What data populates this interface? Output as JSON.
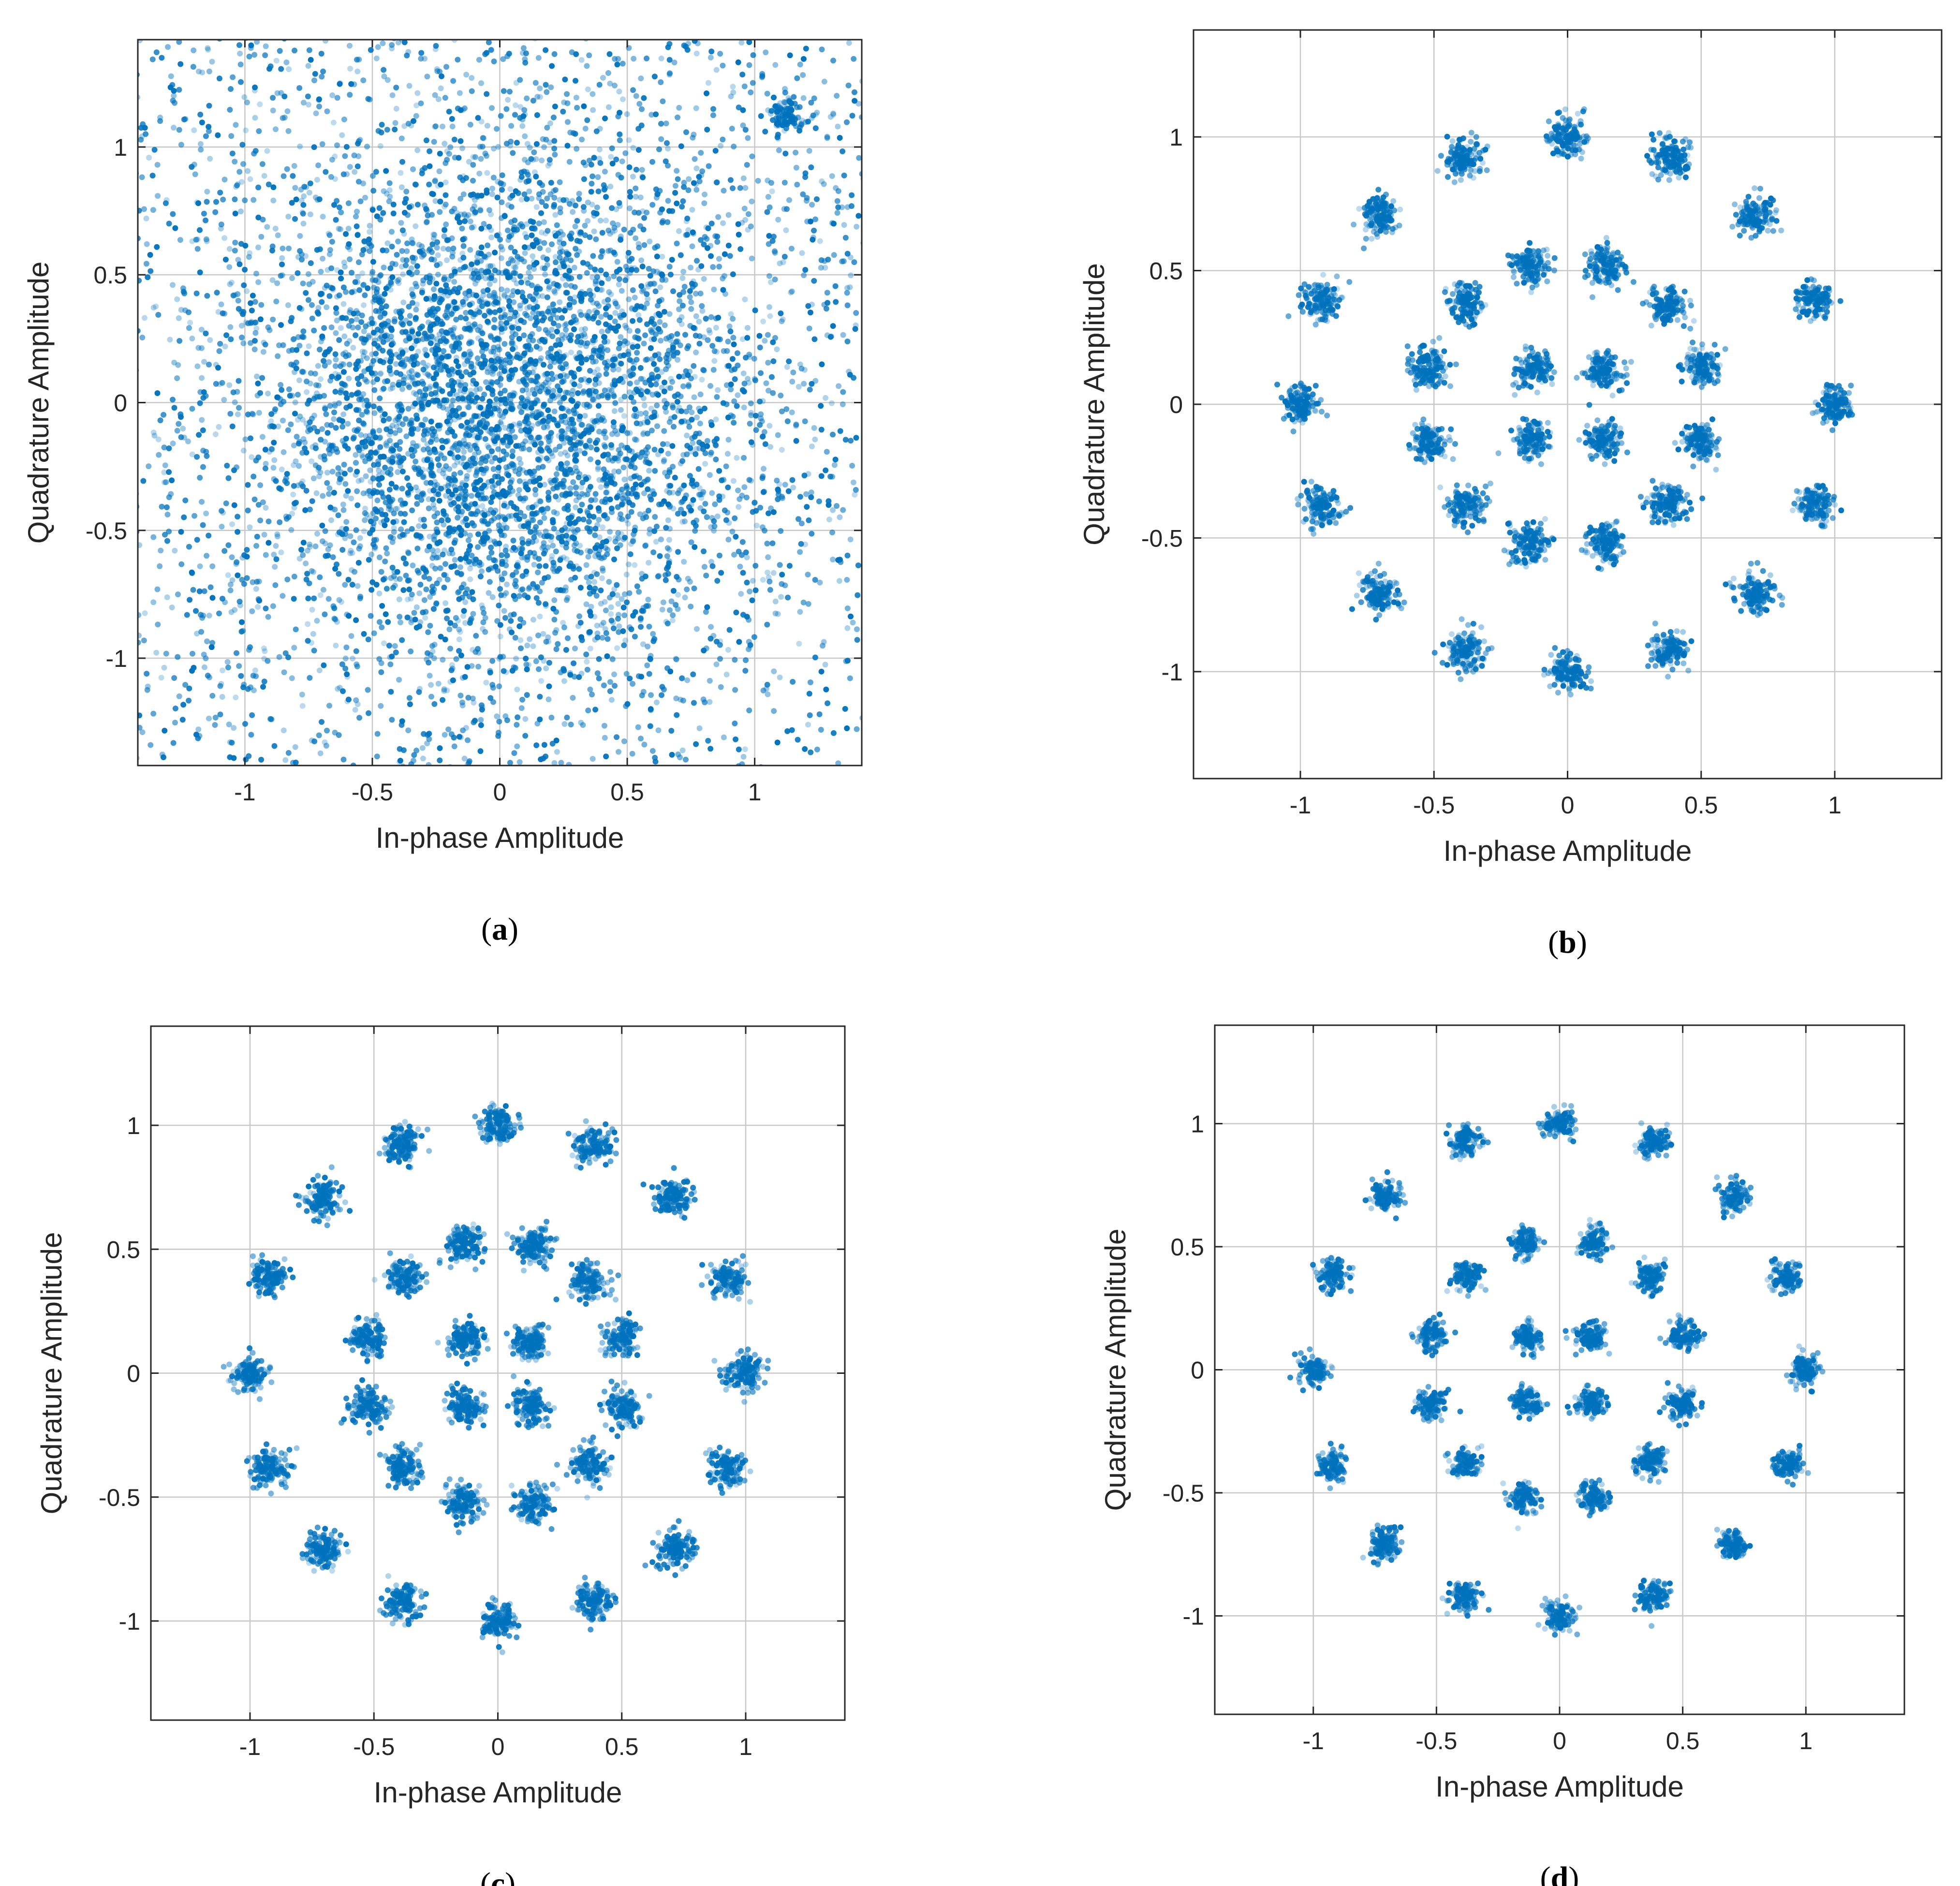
{
  "figure": {
    "point_color": "#0072bd",
    "grid_color": "#c8c8c8",
    "axis_color": "#262626",
    "tick_label_color": "#262626"
  },
  "chart_data": [
    {
      "panel": "a",
      "type": "scatter",
      "title": "",
      "xlabel": "In-phase Amplitude",
      "ylabel": "Quadrature Amplitude",
      "xlim": [
        -1.42,
        1.42
      ],
      "ylim": [
        -1.42,
        1.42
      ],
      "xticks": [
        -1,
        -0.5,
        0,
        0.5,
        1
      ],
      "xtick_labels": [
        "-1",
        "-0.5",
        "0",
        "0.5",
        "1"
      ],
      "yticks": [
        -1,
        -0.5,
        0,
        0.5,
        1
      ],
      "ytick_labels": [
        "-1",
        "-0.5",
        "0",
        "0.5",
        "1"
      ],
      "grid": true,
      "caption": {
        "open": "(",
        "letter": "a",
        "close": ")"
      },
      "distribution": "scattered",
      "point_count": 6500,
      "spread": 0.5,
      "noise_sigma": 0,
      "dense_clusters": [
        {
          "x": 1.12,
          "y": 1.13,
          "sigma": 0.035,
          "n": 90
        }
      ],
      "symbols": []
    },
    {
      "panel": "b",
      "type": "scatter",
      "title": "",
      "xlabel": "In-phase Amplitude",
      "ylabel": "Quadrature Amplitude",
      "xlim": [
        -1.4,
        1.4
      ],
      "ylim": [
        -1.4,
        1.4
      ],
      "xticks": [
        -1,
        -0.5,
        0,
        0.5,
        1
      ],
      "xtick_labels": [
        "-1",
        "-0.5",
        "0",
        "0.5",
        "1"
      ],
      "yticks": [
        -1,
        -0.5,
        0,
        0.5,
        1
      ],
      "ytick_labels": [
        "-1",
        "-0.5",
        "0",
        "0.5",
        "1"
      ],
      "grid": true,
      "caption": {
        "open": "(",
        "letter": "b",
        "close": ")"
      },
      "distribution": "clusters",
      "points_per_symbol": 130,
      "noise_sigma": 0.035,
      "symbols": [
        [
          1.0,
          0.0
        ],
        [
          0.924,
          0.383
        ],
        [
          0.707,
          0.707
        ],
        [
          0.383,
          0.924
        ],
        [
          0.0,
          1.0
        ],
        [
          -0.383,
          0.924
        ],
        [
          -0.707,
          0.707
        ],
        [
          -0.924,
          0.383
        ],
        [
          -1.0,
          0.0
        ],
        [
          -0.924,
          -0.383
        ],
        [
          -0.707,
          -0.707
        ],
        [
          -0.383,
          -0.924
        ],
        [
          0.0,
          -1.0
        ],
        [
          0.383,
          -0.924
        ],
        [
          0.707,
          -0.707
        ],
        [
          0.924,
          -0.383
        ],
        [
          0.5,
          0.14
        ],
        [
          0.37,
          0.37
        ],
        [
          0.14,
          0.52
        ],
        [
          -0.14,
          0.52
        ],
        [
          -0.38,
          0.38
        ],
        [
          -0.52,
          0.14
        ],
        [
          -0.52,
          -0.14
        ],
        [
          -0.38,
          -0.38
        ],
        [
          -0.14,
          -0.52
        ],
        [
          0.14,
          -0.52
        ],
        [
          0.37,
          -0.37
        ],
        [
          0.5,
          -0.14
        ],
        [
          0.13,
          0.13
        ],
        [
          -0.13,
          0.13
        ],
        [
          -0.13,
          -0.13
        ],
        [
          0.13,
          -0.13
        ]
      ]
    },
    {
      "panel": "c",
      "type": "scatter",
      "title": "",
      "xlabel": "In-phase Amplitude",
      "ylabel": "Quadrature Amplitude",
      "xlim": [
        -1.4,
        1.4
      ],
      "ylim": [
        -1.4,
        1.4
      ],
      "xticks": [
        -1,
        -0.5,
        0,
        0.5,
        1
      ],
      "xtick_labels": [
        "-1",
        "-0.5",
        "0",
        "0.5",
        "1"
      ],
      "yticks": [
        -1,
        -0.5,
        0,
        0.5,
        1
      ],
      "ytick_labels": [
        "-1",
        "-0.5",
        "0",
        "0.5",
        "1"
      ],
      "grid": true,
      "caption": {
        "open": "(",
        "letter": "c",
        "close": ")"
      },
      "distribution": "clusters",
      "points_per_symbol": 130,
      "noise_sigma": 0.037,
      "symbols": [
        [
          1.0,
          0.0
        ],
        [
          0.924,
          0.383
        ],
        [
          0.707,
          0.707
        ],
        [
          0.383,
          0.924
        ],
        [
          0.0,
          1.0
        ],
        [
          -0.383,
          0.924
        ],
        [
          -0.707,
          0.707
        ],
        [
          -0.924,
          0.383
        ],
        [
          -1.0,
          0.0
        ],
        [
          -0.924,
          -0.383
        ],
        [
          -0.707,
          -0.707
        ],
        [
          -0.383,
          -0.924
        ],
        [
          0.0,
          -1.0
        ],
        [
          0.383,
          -0.924
        ],
        [
          0.707,
          -0.707
        ],
        [
          0.924,
          -0.383
        ],
        [
          0.5,
          0.14
        ],
        [
          0.37,
          0.37
        ],
        [
          0.14,
          0.52
        ],
        [
          -0.14,
          0.52
        ],
        [
          -0.38,
          0.38
        ],
        [
          -0.52,
          0.14
        ],
        [
          -0.52,
          -0.14
        ],
        [
          -0.38,
          -0.38
        ],
        [
          -0.14,
          -0.52
        ],
        [
          0.14,
          -0.52
        ],
        [
          0.37,
          -0.37
        ],
        [
          0.5,
          -0.14
        ],
        [
          0.13,
          0.13
        ],
        [
          -0.13,
          0.13
        ],
        [
          -0.13,
          -0.13
        ],
        [
          0.13,
          -0.13
        ]
      ]
    },
    {
      "panel": "d",
      "type": "scatter",
      "title": "",
      "xlabel": "In-phase Amplitude",
      "ylabel": "Quadrature Amplitude",
      "xlim": [
        -1.4,
        1.4
      ],
      "ylim": [
        -1.4,
        1.4
      ],
      "xticks": [
        -1,
        -0.5,
        0,
        0.5,
        1
      ],
      "xtick_labels": [
        "-1",
        "-0.5",
        "0",
        "0.5",
        "1"
      ],
      "yticks": [
        -1,
        -0.5,
        0,
        0.5,
        1
      ],
      "ytick_labels": [
        "-1",
        "-0.5",
        "0",
        "0.5",
        "1"
      ],
      "grid": true,
      "caption": {
        "open": "(",
        "letter": "d",
        "close": ")"
      },
      "distribution": "clusters",
      "points_per_symbol": 110,
      "noise_sigma": 0.03,
      "symbols": [
        [
          1.0,
          0.0
        ],
        [
          0.924,
          0.383
        ],
        [
          0.707,
          0.707
        ],
        [
          0.383,
          0.924
        ],
        [
          0.0,
          1.0
        ],
        [
          -0.383,
          0.924
        ],
        [
          -0.707,
          0.707
        ],
        [
          -0.924,
          0.383
        ],
        [
          -1.0,
          0.0
        ],
        [
          -0.924,
          -0.383
        ],
        [
          -0.707,
          -0.707
        ],
        [
          -0.383,
          -0.924
        ],
        [
          0.0,
          -1.0
        ],
        [
          0.383,
          -0.924
        ],
        [
          0.707,
          -0.707
        ],
        [
          0.924,
          -0.383
        ],
        [
          0.5,
          0.14
        ],
        [
          0.37,
          0.37
        ],
        [
          0.14,
          0.52
        ],
        [
          -0.14,
          0.52
        ],
        [
          -0.38,
          0.38
        ],
        [
          -0.52,
          0.14
        ],
        [
          -0.52,
          -0.14
        ],
        [
          -0.38,
          -0.38
        ],
        [
          -0.14,
          -0.52
        ],
        [
          0.14,
          -0.52
        ],
        [
          0.37,
          -0.37
        ],
        [
          0.5,
          -0.14
        ],
        [
          0.13,
          0.13
        ],
        [
          -0.13,
          0.13
        ],
        [
          -0.13,
          -0.13
        ],
        [
          0.13,
          -0.13
        ]
      ]
    }
  ]
}
